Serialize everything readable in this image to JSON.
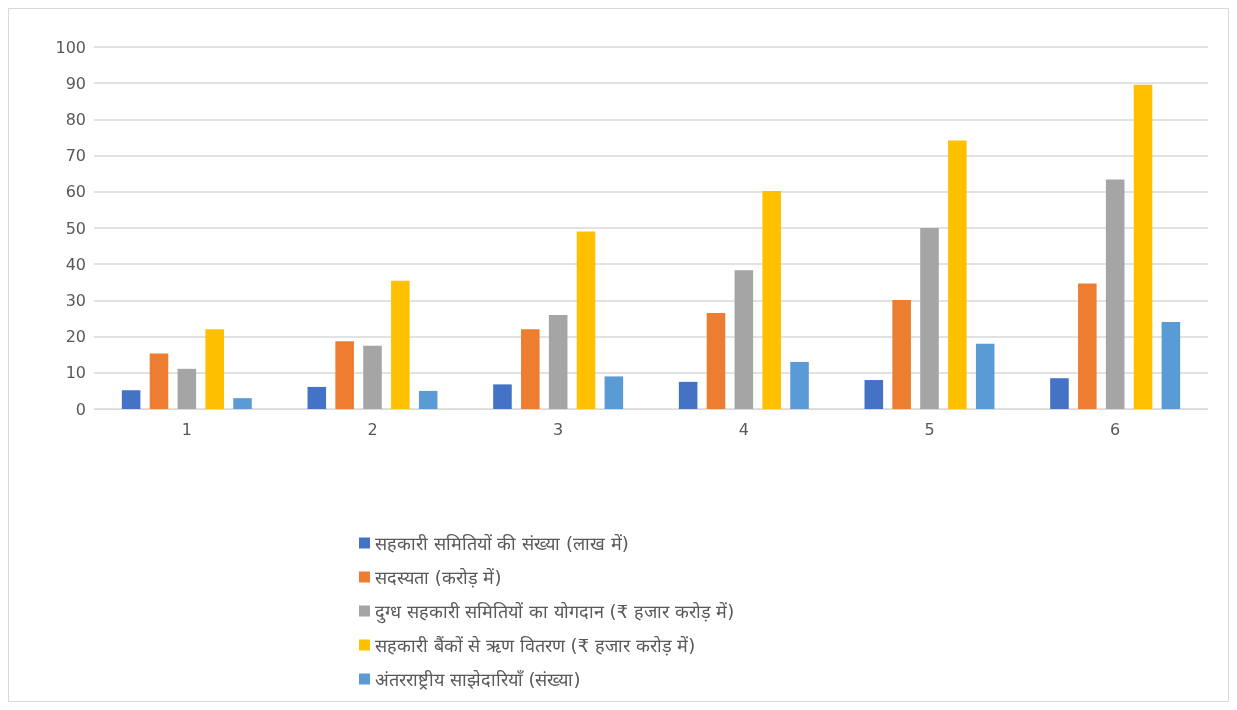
{
  "chart_data": {
    "type": "bar",
    "categories": [
      "1",
      "2",
      "3",
      "4",
      "5",
      "6"
    ],
    "series": [
      {
        "name": "सहकारी समितियों की संख्या (लाख में)",
        "color": "#4472c4",
        "values": [
          5.2,
          6.1,
          6.8,
          7.5,
          8,
          8.5
        ]
      },
      {
        "name": "सदस्यता (करोड़ में)",
        "color": "#ed7d31",
        "values": [
          15.3,
          18.7,
          22,
          26.5,
          30.1,
          34.7
        ]
      },
      {
        "name": "दुग्ध सहकारी समितियों का योगदान (₹ हजार करोड़ में)",
        "color": "#a5a5a5",
        "values": [
          11.1,
          17.5,
          26,
          38.3,
          50,
          63.4
        ]
      },
      {
        "name": "सहकारी बैंकों से ऋण वितरण (₹ हजार करोड़ में)",
        "color": "#ffc000",
        "values": [
          22,
          35.4,
          49,
          60.2,
          74.2,
          89.6
        ]
      },
      {
        "name": "अंतरराष्ट्रीय साझेदारियाँ (संख्या)",
        "color": "#5b9bd5",
        "values": [
          3,
          5,
          9,
          13,
          18,
          24
        ]
      }
    ],
    "ylim": [
      0,
      100
    ],
    "yticks": [
      0,
      10,
      20,
      30,
      40,
      50,
      60,
      70,
      80,
      90,
      100
    ],
    "grid": "y",
    "legend": "bottom"
  }
}
